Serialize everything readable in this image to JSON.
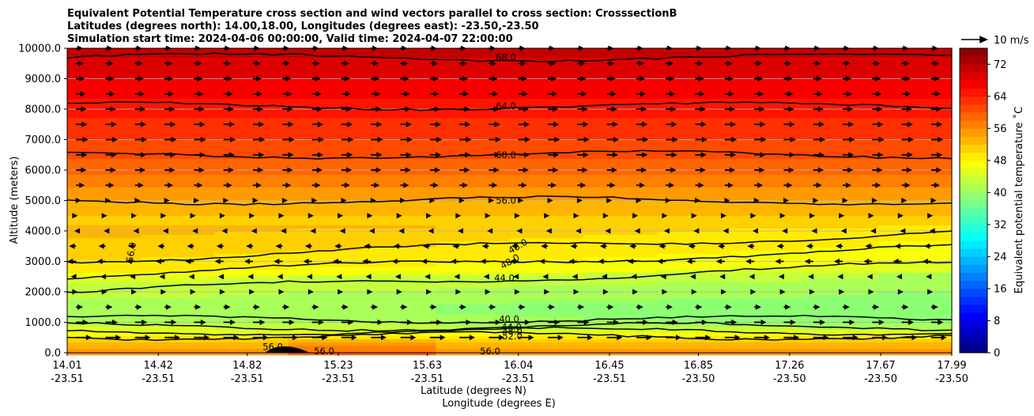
{
  "chart_data": {
    "type": "contour-cross-section",
    "title_lines": [
      "Equivalent Potential Temperature cross section and wind vectors parallel to cross section: CrosssectionB",
      "Latitudes (degrees north): 14.00,18.00, Longitudes (degrees east): -23.50,-23.50",
      "Simulation start time: 2024-04-06 00:00:00, Valid time: 2024-04-07 22:00:00"
    ],
    "ylabel": "Altitude (meters)",
    "xlabel_lat": "Latitude (degrees N)",
    "xlabel_lon": "Longitude (degrees E)",
    "ylim": [
      0,
      10000
    ],
    "yticks": [
      "0.0",
      "1000.0",
      "2000.0",
      "3000.0",
      "4000.0",
      "5000.0",
      "6000.0",
      "7000.0",
      "8000.0",
      "9000.0",
      "10000.0"
    ],
    "xticks": [
      {
        "lat": "14.01",
        "lon": "-23.51"
      },
      {
        "lat": "14.42",
        "lon": "-23.51"
      },
      {
        "lat": "14.82",
        "lon": "-23.51"
      },
      {
        "lat": "15.23",
        "lon": "-23.51"
      },
      {
        "lat": "15.63",
        "lon": "-23.51"
      },
      {
        "lat": "16.04",
        "lon": "-23.51"
      },
      {
        "lat": "16.45",
        "lon": "-23.51"
      },
      {
        "lat": "16.85",
        "lon": "-23.50"
      },
      {
        "lat": "17.26",
        "lon": "-23.50"
      },
      {
        "lat": "17.67",
        "lon": "-23.50"
      },
      {
        "lat": "17.99",
        "lon": "-23.50"
      }
    ],
    "x_range_lat": [
      14.01,
      17.99
    ],
    "colorbar": {
      "label": "Equivalent potential temperature ˚C",
      "range": [
        0,
        76
      ],
      "tick_values": [
        0,
        8,
        16,
        24,
        32,
        40,
        48,
        56,
        64,
        72
      ],
      "tick_labels": [
        "0",
        "8",
        "16",
        "24",
        "32",
        "40",
        "48",
        "56",
        "64",
        "72"
      ],
      "step": 2
    },
    "quiver_key": "10 m/s",
    "contour_levels": [
      {
        "label": "68.0",
        "altitude": 9700
      },
      {
        "label": "64.0",
        "altitude": 8100
      },
      {
        "label": "60.0",
        "altitude": 6500
      },
      {
        "label": "56.0",
        "altitude": 5000
      },
      {
        "label": "48.0",
        "altitude": 3500
      },
      {
        "label": "48.0",
        "altitude": 3000
      },
      {
        "label": "44.0",
        "altitude": 2450
      },
      {
        "label": "40.0",
        "altitude": 1100
      },
      {
        "label": "44.0",
        "altitude": 850
      },
      {
        "label": "48.0",
        "altitude": 700
      },
      {
        "label": "52.0",
        "altitude": 550
      },
      {
        "label": "56.0",
        "altitude": 3300
      },
      {
        "label": "56.0",
        "altitude": 200
      },
      {
        "label": "56.0",
        "altitude": 50
      },
      {
        "label": "56.0",
        "altitude": 50
      }
    ],
    "theta_e_profile": [
      [
        0,
        55
      ],
      [
        300,
        52
      ],
      [
        600,
        47
      ],
      [
        1000,
        42
      ],
      [
        1500,
        41
      ],
      [
        2000,
        43
      ],
      [
        3000,
        47
      ],
      [
        4000,
        50
      ],
      [
        5000,
        54
      ],
      [
        6000,
        59
      ],
      [
        7000,
        62
      ],
      [
        8000,
        65
      ],
      [
        9000,
        68
      ],
      [
        10000,
        71
      ]
    ],
    "wind_profile_ms": [
      [
        500,
        9
      ],
      [
        1000,
        7
      ],
      [
        1500,
        4
      ],
      [
        2000,
        1
      ],
      [
        2500,
        -3
      ],
      [
        3000,
        -5
      ],
      [
        3500,
        -4
      ],
      [
        4000,
        -1
      ],
      [
        4500,
        1
      ],
      [
        5000,
        3
      ],
      [
        5500,
        5
      ],
      [
        6000,
        6
      ],
      [
        7000,
        7
      ],
      [
        8000,
        6
      ],
      [
        9000,
        5
      ],
      [
        10000,
        4
      ]
    ]
  }
}
